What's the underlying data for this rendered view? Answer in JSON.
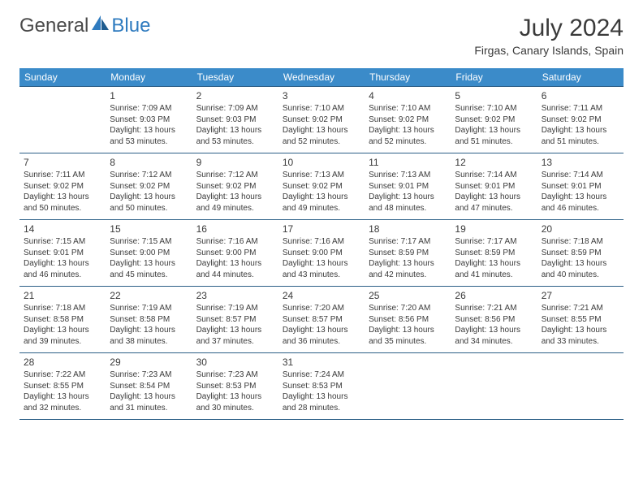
{
  "logo": {
    "general": "General",
    "blue": "Blue"
  },
  "title": "July 2024",
  "location": "Firgas, Canary Islands, Spain",
  "colors": {
    "header_bg": "#3b8bc9",
    "header_text": "#ffffff",
    "rule": "#2c5f87",
    "text": "#3a3a3a",
    "logo_blue": "#2f7bbf",
    "logo_gray": "#4a4a4a",
    "page_bg": "#ffffff"
  },
  "typography": {
    "title_fontsize": 30,
    "location_fontsize": 14,
    "dayheader_fontsize": 12,
    "daynum_fontsize": 12,
    "body_fontsize": 10
  },
  "day_headers": [
    "Sunday",
    "Monday",
    "Tuesday",
    "Wednesday",
    "Thursday",
    "Friday",
    "Saturday"
  ],
  "weeks": [
    [
      null,
      {
        "n": "1",
        "sr": "Sunrise: 7:09 AM",
        "ss": "Sunset: 9:03 PM",
        "dl1": "Daylight: 13 hours",
        "dl2": "and 53 minutes."
      },
      {
        "n": "2",
        "sr": "Sunrise: 7:09 AM",
        "ss": "Sunset: 9:03 PM",
        "dl1": "Daylight: 13 hours",
        "dl2": "and 53 minutes."
      },
      {
        "n": "3",
        "sr": "Sunrise: 7:10 AM",
        "ss": "Sunset: 9:02 PM",
        "dl1": "Daylight: 13 hours",
        "dl2": "and 52 minutes."
      },
      {
        "n": "4",
        "sr": "Sunrise: 7:10 AM",
        "ss": "Sunset: 9:02 PM",
        "dl1": "Daylight: 13 hours",
        "dl2": "and 52 minutes."
      },
      {
        "n": "5",
        "sr": "Sunrise: 7:10 AM",
        "ss": "Sunset: 9:02 PM",
        "dl1": "Daylight: 13 hours",
        "dl2": "and 51 minutes."
      },
      {
        "n": "6",
        "sr": "Sunrise: 7:11 AM",
        "ss": "Sunset: 9:02 PM",
        "dl1": "Daylight: 13 hours",
        "dl2": "and 51 minutes."
      }
    ],
    [
      {
        "n": "7",
        "sr": "Sunrise: 7:11 AM",
        "ss": "Sunset: 9:02 PM",
        "dl1": "Daylight: 13 hours",
        "dl2": "and 50 minutes."
      },
      {
        "n": "8",
        "sr": "Sunrise: 7:12 AM",
        "ss": "Sunset: 9:02 PM",
        "dl1": "Daylight: 13 hours",
        "dl2": "and 50 minutes."
      },
      {
        "n": "9",
        "sr": "Sunrise: 7:12 AM",
        "ss": "Sunset: 9:02 PM",
        "dl1": "Daylight: 13 hours",
        "dl2": "and 49 minutes."
      },
      {
        "n": "10",
        "sr": "Sunrise: 7:13 AM",
        "ss": "Sunset: 9:02 PM",
        "dl1": "Daylight: 13 hours",
        "dl2": "and 49 minutes."
      },
      {
        "n": "11",
        "sr": "Sunrise: 7:13 AM",
        "ss": "Sunset: 9:01 PM",
        "dl1": "Daylight: 13 hours",
        "dl2": "and 48 minutes."
      },
      {
        "n": "12",
        "sr": "Sunrise: 7:14 AM",
        "ss": "Sunset: 9:01 PM",
        "dl1": "Daylight: 13 hours",
        "dl2": "and 47 minutes."
      },
      {
        "n": "13",
        "sr": "Sunrise: 7:14 AM",
        "ss": "Sunset: 9:01 PM",
        "dl1": "Daylight: 13 hours",
        "dl2": "and 46 minutes."
      }
    ],
    [
      {
        "n": "14",
        "sr": "Sunrise: 7:15 AM",
        "ss": "Sunset: 9:01 PM",
        "dl1": "Daylight: 13 hours",
        "dl2": "and 46 minutes."
      },
      {
        "n": "15",
        "sr": "Sunrise: 7:15 AM",
        "ss": "Sunset: 9:00 PM",
        "dl1": "Daylight: 13 hours",
        "dl2": "and 45 minutes."
      },
      {
        "n": "16",
        "sr": "Sunrise: 7:16 AM",
        "ss": "Sunset: 9:00 PM",
        "dl1": "Daylight: 13 hours",
        "dl2": "and 44 minutes."
      },
      {
        "n": "17",
        "sr": "Sunrise: 7:16 AM",
        "ss": "Sunset: 9:00 PM",
        "dl1": "Daylight: 13 hours",
        "dl2": "and 43 minutes."
      },
      {
        "n": "18",
        "sr": "Sunrise: 7:17 AM",
        "ss": "Sunset: 8:59 PM",
        "dl1": "Daylight: 13 hours",
        "dl2": "and 42 minutes."
      },
      {
        "n": "19",
        "sr": "Sunrise: 7:17 AM",
        "ss": "Sunset: 8:59 PM",
        "dl1": "Daylight: 13 hours",
        "dl2": "and 41 minutes."
      },
      {
        "n": "20",
        "sr": "Sunrise: 7:18 AM",
        "ss": "Sunset: 8:59 PM",
        "dl1": "Daylight: 13 hours",
        "dl2": "and 40 minutes."
      }
    ],
    [
      {
        "n": "21",
        "sr": "Sunrise: 7:18 AM",
        "ss": "Sunset: 8:58 PM",
        "dl1": "Daylight: 13 hours",
        "dl2": "and 39 minutes."
      },
      {
        "n": "22",
        "sr": "Sunrise: 7:19 AM",
        "ss": "Sunset: 8:58 PM",
        "dl1": "Daylight: 13 hours",
        "dl2": "and 38 minutes."
      },
      {
        "n": "23",
        "sr": "Sunrise: 7:19 AM",
        "ss": "Sunset: 8:57 PM",
        "dl1": "Daylight: 13 hours",
        "dl2": "and 37 minutes."
      },
      {
        "n": "24",
        "sr": "Sunrise: 7:20 AM",
        "ss": "Sunset: 8:57 PM",
        "dl1": "Daylight: 13 hours",
        "dl2": "and 36 minutes."
      },
      {
        "n": "25",
        "sr": "Sunrise: 7:20 AM",
        "ss": "Sunset: 8:56 PM",
        "dl1": "Daylight: 13 hours",
        "dl2": "and 35 minutes."
      },
      {
        "n": "26",
        "sr": "Sunrise: 7:21 AM",
        "ss": "Sunset: 8:56 PM",
        "dl1": "Daylight: 13 hours",
        "dl2": "and 34 minutes."
      },
      {
        "n": "27",
        "sr": "Sunrise: 7:21 AM",
        "ss": "Sunset: 8:55 PM",
        "dl1": "Daylight: 13 hours",
        "dl2": "and 33 minutes."
      }
    ],
    [
      {
        "n": "28",
        "sr": "Sunrise: 7:22 AM",
        "ss": "Sunset: 8:55 PM",
        "dl1": "Daylight: 13 hours",
        "dl2": "and 32 minutes."
      },
      {
        "n": "29",
        "sr": "Sunrise: 7:23 AM",
        "ss": "Sunset: 8:54 PM",
        "dl1": "Daylight: 13 hours",
        "dl2": "and 31 minutes."
      },
      {
        "n": "30",
        "sr": "Sunrise: 7:23 AM",
        "ss": "Sunset: 8:53 PM",
        "dl1": "Daylight: 13 hours",
        "dl2": "and 30 minutes."
      },
      {
        "n": "31",
        "sr": "Sunrise: 7:24 AM",
        "ss": "Sunset: 8:53 PM",
        "dl1": "Daylight: 13 hours",
        "dl2": "and 28 minutes."
      },
      null,
      null,
      null
    ]
  ]
}
